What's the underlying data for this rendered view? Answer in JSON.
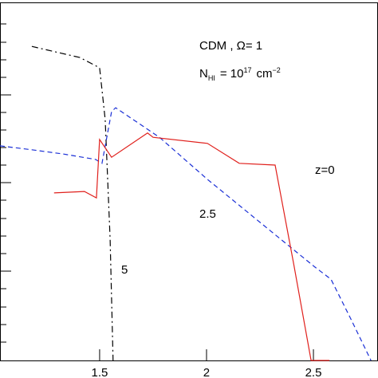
{
  "chart_data": {
    "type": "line",
    "annotations": {
      "model": "CDM , Ω= 1",
      "column": {
        "n": "N",
        "n_sub": "HI",
        "eq": "= 10",
        "exp": "17",
        "unit": "cm",
        "unit_exp": "−2"
      }
    },
    "xlim": [
      1.034,
      2.802
    ],
    "ylim": [
      0,
      1
    ],
    "xticks": [
      1.5,
      2,
      2.5
    ],
    "series": [
      {
        "name": "5",
        "color": "#000000",
        "dash": "8,4,2,4",
        "x": [
          1.183,
          1.407,
          1.5,
          1.526,
          1.549,
          1.563
        ],
        "values": [
          0.881,
          0.85,
          0.821,
          0.676,
          0.34,
          0
        ]
      },
      {
        "name": "2.5",
        "color": "#1a2fd6",
        "dash": "6,4",
        "x": [
          1.034,
          1.183,
          1.332,
          1.481,
          1.511,
          1.556,
          1.575,
          1.78,
          2.004,
          2.302,
          2.507,
          2.582,
          2.675,
          2.769
        ],
        "values": [
          0.602,
          0.591,
          0.579,
          0.564,
          0.553,
          0.698,
          0.709,
          0.626,
          0.508,
          0.362,
          0.262,
          0.228,
          0.116,
          0
        ]
      },
      {
        "name": "z=0",
        "color": "#e0201c",
        "dash": "",
        "x": [
          1.287,
          1.429,
          1.485,
          1.5,
          1.556,
          1.724,
          1.75,
          2.004,
          2.153,
          2.321,
          2.407,
          2.489,
          2.575
        ],
        "values": [
          0.47,
          0.474,
          0.456,
          0.62,
          0.57,
          0.638,
          0.626,
          0.609,
          0.553,
          0.548,
          0.273,
          0,
          0
        ]
      }
    ]
  }
}
